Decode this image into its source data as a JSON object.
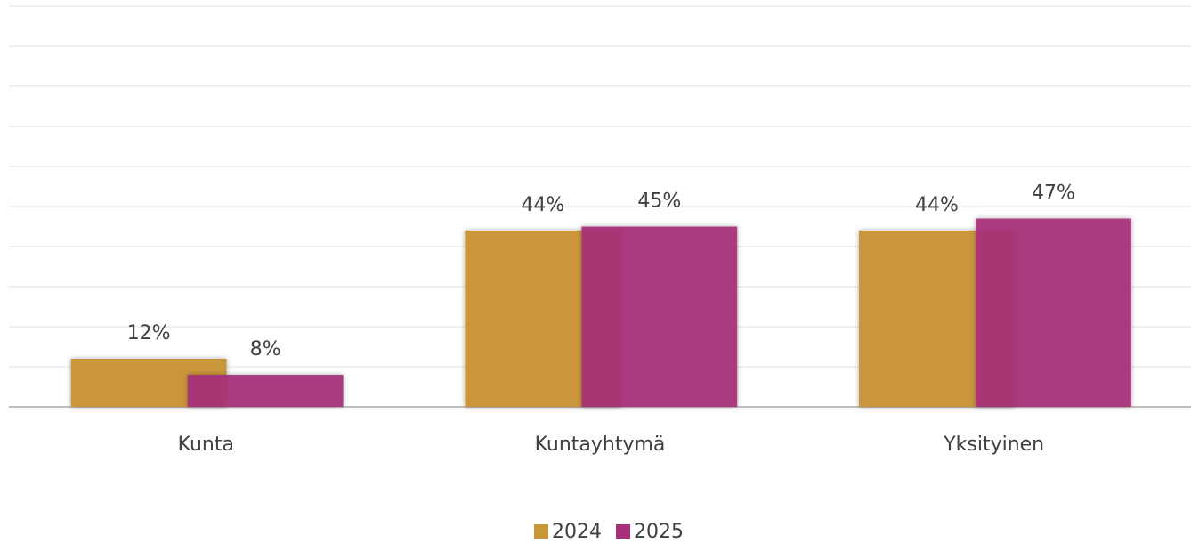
{
  "chart_data": {
    "type": "bar",
    "categories": [
      "Kunta",
      "Kuntayhtymä",
      "Yksityinen"
    ],
    "series": [
      {
        "name": "2024",
        "color": "#c9963a",
        "values": [
          12,
          44,
          44
        ],
        "value_labels": [
          "12%",
          "44%",
          "44%"
        ]
      },
      {
        "name": "2025",
        "color": "#a8307a",
        "values": [
          8,
          45,
          47
        ],
        "value_labels": [
          "8%",
          "45%",
          "47%"
        ]
      }
    ],
    "ylim": [
      0,
      100
    ],
    "yticks": [
      0,
      10,
      20,
      30,
      40,
      50,
      60,
      70,
      80,
      90,
      100
    ],
    "grid": true,
    "legend": "bottom"
  }
}
